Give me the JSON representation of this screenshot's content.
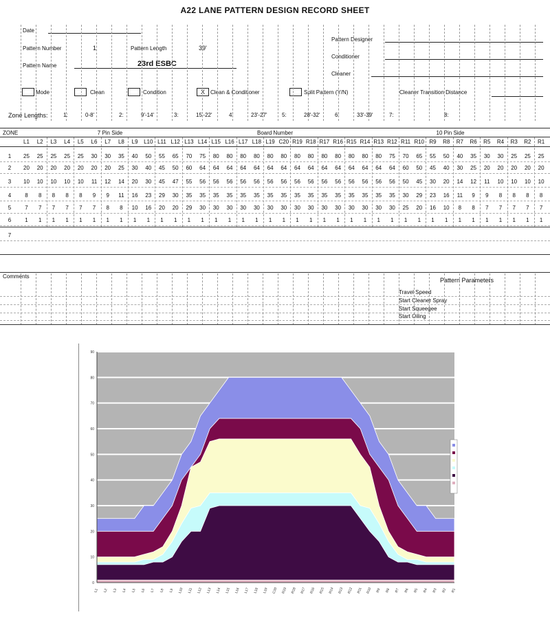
{
  "sheet": {
    "title": "A22 LANE PATTERN DESIGN RECORD SHEET",
    "date_label": "Date",
    "pattern_number_label": "Pattern Number",
    "pattern_number": "1",
    "pattern_length_label": "Pattern Length",
    "pattern_length": "39'",
    "pattern_designer_label": "Pattern Designer",
    "conditioner_label": "Conditioner",
    "cleaner_label": "Cleaner",
    "pattern_name_label": "Pattern Name",
    "pattern_name": "23rd ESBC",
    "mode_label": "Mode",
    "clean_label": "Clean",
    "condition_label": "Condition",
    "clean_condition_label": "Clean & Conditioner",
    "clean_condition_mark": "X",
    "split_pattern_label": "Split Pattern (Y/N)",
    "cleaner_transition_label": "Cleaner Transition Distance",
    "zone_lengths_label": "Zone Lengths:",
    "zone_lengths": [
      {
        "n": "1:",
        "v": "0-8'"
      },
      {
        "n": "2:",
        "v": "9'-14'"
      },
      {
        "n": "3:",
        "v": "15'-22'"
      },
      {
        "n": "4:",
        "v": "23'-27'"
      },
      {
        "n": "5:",
        "v": "28'-32'"
      },
      {
        "n": "6:",
        "v": "33'-39'"
      },
      {
        "n": "7:",
        "v": ""
      },
      {
        "n": "8:",
        "v": ""
      }
    ],
    "zone_label": "ZONE",
    "left_group": "7 Pin Side",
    "mid_group": "Board Number",
    "right_group": "10 Pin Side",
    "boards": [
      "L1",
      "L2",
      "L3",
      "L4",
      "L5",
      "L6",
      "L7",
      "L8",
      "L9",
      "L10",
      "L11",
      "L12",
      "L13",
      "L14",
      "L15",
      "L16",
      "L17",
      "L18",
      "L19",
      "C20",
      "R19",
      "R18",
      "R17",
      "R16",
      "R15",
      "R14",
      "R13",
      "R12",
      "R11",
      "R10",
      "R9",
      "R8",
      "R7",
      "R6",
      "R5",
      "R4",
      "R3",
      "R2",
      "R1"
    ],
    "zones": [
      {
        "z": "1",
        "v": [
          "25",
          "25",
          "25",
          "25",
          "25",
          "30",
          "30",
          "35",
          "40",
          "50",
          "55",
          "65",
          "70",
          "75",
          "80",
          "80",
          "80",
          "80",
          "80",
          "80",
          "80",
          "80",
          "80",
          "80",
          "80",
          "80",
          "80",
          "75",
          "70",
          "65",
          "55",
          "50",
          "40",
          "35",
          "30",
          "30",
          "25",
          "25",
          "25"
        ]
      },
      {
        "z": "2",
        "v": [
          "20",
          "20",
          "20",
          "20",
          "20",
          "20",
          "20",
          "25",
          "30",
          "40",
          "45",
          "50",
          "60",
          "64",
          "64",
          "64",
          "64",
          "64",
          "64",
          "64",
          "64",
          "64",
          "64",
          "64",
          "64",
          "64",
          "64",
          "64",
          "60",
          "50",
          "45",
          "40",
          "30",
          "25",
          "20",
          "20",
          "20",
          "20",
          "20"
        ]
      },
      {
        "z": "3",
        "v": [
          "10",
          "10",
          "10",
          "10",
          "10",
          "11",
          "12",
          "14",
          "20",
          "30",
          "45",
          "47",
          "55",
          "56",
          "56",
          "56",
          "56",
          "56",
          "56",
          "56",
          "56",
          "56",
          "56",
          "56",
          "56",
          "56",
          "56",
          "56",
          "50",
          "45",
          "30",
          "20",
          "14",
          "12",
          "11",
          "10",
          "10",
          "10",
          "10"
        ]
      },
      {
        "z": "4",
        "v": [
          "8",
          "8",
          "8",
          "8",
          "8",
          "9",
          "9",
          "11",
          "16",
          "23",
          "29",
          "30",
          "35",
          "35",
          "35",
          "35",
          "35",
          "35",
          "35",
          "35",
          "35",
          "35",
          "35",
          "35",
          "35",
          "35",
          "35",
          "35",
          "30",
          "29",
          "23",
          "16",
          "11",
          "9",
          "9",
          "8",
          "8",
          "8",
          "8"
        ]
      },
      {
        "z": "5",
        "v": [
          "7",
          "7",
          "7",
          "7",
          "7",
          "7",
          "8",
          "8",
          "10",
          "16",
          "20",
          "20",
          "29",
          "30",
          "30",
          "30",
          "30",
          "30",
          "30",
          "30",
          "30",
          "30",
          "30",
          "30",
          "30",
          "30",
          "30",
          "30",
          "25",
          "20",
          "16",
          "10",
          "8",
          "8",
          "7",
          "7",
          "7",
          "7",
          "7"
        ]
      },
      {
        "z": "6",
        "v": [
          "1",
          "1",
          "1",
          "1",
          "1",
          "1",
          "1",
          "1",
          "1",
          "1",
          "1",
          "1",
          "1",
          "1",
          "1",
          "1",
          "1",
          "1",
          "1",
          "1",
          "1",
          "1",
          "1",
          "1",
          "1",
          "1",
          "1",
          "1",
          "1",
          "1",
          "1",
          "1",
          "1",
          "1",
          "1",
          "1",
          "1",
          "1",
          "1"
        ]
      },
      {
        "z": "7",
        "v": []
      }
    ],
    "comments_label": "Comments",
    "params_title": "Pattern Parameters",
    "params": [
      "Travel Speed",
      "Start Cleaner Spray",
      "Start Squeegee",
      "Start Oiling"
    ]
  },
  "chart_data": {
    "type": "area",
    "stacked": false,
    "categories": [
      "L1",
      "L2",
      "L3",
      "L4",
      "L5",
      "L6",
      "L7",
      "L8",
      "L9",
      "L10",
      "L11",
      "L12",
      "L13",
      "L14",
      "L15",
      "L16",
      "L17",
      "L18",
      "L19",
      "C20",
      "R19",
      "R18",
      "R17",
      "R16",
      "R15",
      "R14",
      "R13",
      "R12",
      "R11",
      "R10",
      "R9",
      "R8",
      "R7",
      "R6",
      "R5",
      "R4",
      "R3",
      "R2",
      "R1"
    ],
    "series": [
      {
        "values": [
          25,
          25,
          25,
          25,
          25,
          30,
          30,
          35,
          40,
          50,
          55,
          65,
          70,
          75,
          80,
          80,
          80,
          80,
          80,
          80,
          80,
          80,
          80,
          80,
          80,
          80,
          80,
          75,
          70,
          65,
          55,
          50,
          40,
          35,
          30,
          30,
          25,
          25,
          25
        ],
        "color": "#8a8ee8"
      },
      {
        "values": [
          20,
          20,
          20,
          20,
          20,
          20,
          20,
          25,
          30,
          40,
          45,
          50,
          60,
          64,
          64,
          64,
          64,
          64,
          64,
          64,
          64,
          64,
          64,
          64,
          64,
          64,
          64,
          64,
          60,
          50,
          45,
          40,
          30,
          25,
          20,
          20,
          20,
          20,
          20
        ],
        "color": "#7a0a4a"
      },
      {
        "values": [
          10,
          10,
          10,
          10,
          10,
          11,
          12,
          14,
          20,
          30,
          45,
          47,
          55,
          56,
          56,
          56,
          56,
          56,
          56,
          56,
          56,
          56,
          56,
          56,
          56,
          56,
          56,
          56,
          50,
          45,
          30,
          20,
          14,
          12,
          11,
          10,
          10,
          10,
          10
        ],
        "color": "#fbfbcc"
      },
      {
        "values": [
          8,
          8,
          8,
          8,
          8,
          9,
          9,
          11,
          16,
          23,
          29,
          30,
          35,
          35,
          35,
          35,
          35,
          35,
          35,
          35,
          35,
          35,
          35,
          35,
          35,
          35,
          35,
          35,
          30,
          29,
          23,
          16,
          11,
          9,
          9,
          8,
          8,
          8,
          8
        ],
        "color": "#c6fbfb"
      },
      {
        "values": [
          7,
          7,
          7,
          7,
          7,
          7,
          8,
          8,
          10,
          16,
          20,
          20,
          29,
          30,
          30,
          30,
          30,
          30,
          30,
          30,
          30,
          30,
          30,
          30,
          30,
          30,
          30,
          30,
          25,
          20,
          16,
          10,
          8,
          8,
          7,
          7,
          7,
          7,
          7
        ],
        "color": "#3e0c44"
      },
      {
        "values": [
          1,
          1,
          1,
          1,
          1,
          1,
          1,
          1,
          1,
          1,
          1,
          1,
          1,
          1,
          1,
          1,
          1,
          1,
          1,
          1,
          1,
          1,
          1,
          1,
          1,
          1,
          1,
          1,
          1,
          1,
          1,
          1,
          1,
          1,
          1,
          1,
          1,
          1,
          1
        ],
        "color": "#e0b0c0"
      }
    ],
    "yticks": [
      "0",
      "10",
      "20",
      "30",
      "40",
      "50",
      "60",
      "70",
      "80",
      "90"
    ],
    "ylim": [
      0,
      90
    ],
    "grid": true,
    "background_color": "#b4b4b4",
    "legend": "right"
  }
}
